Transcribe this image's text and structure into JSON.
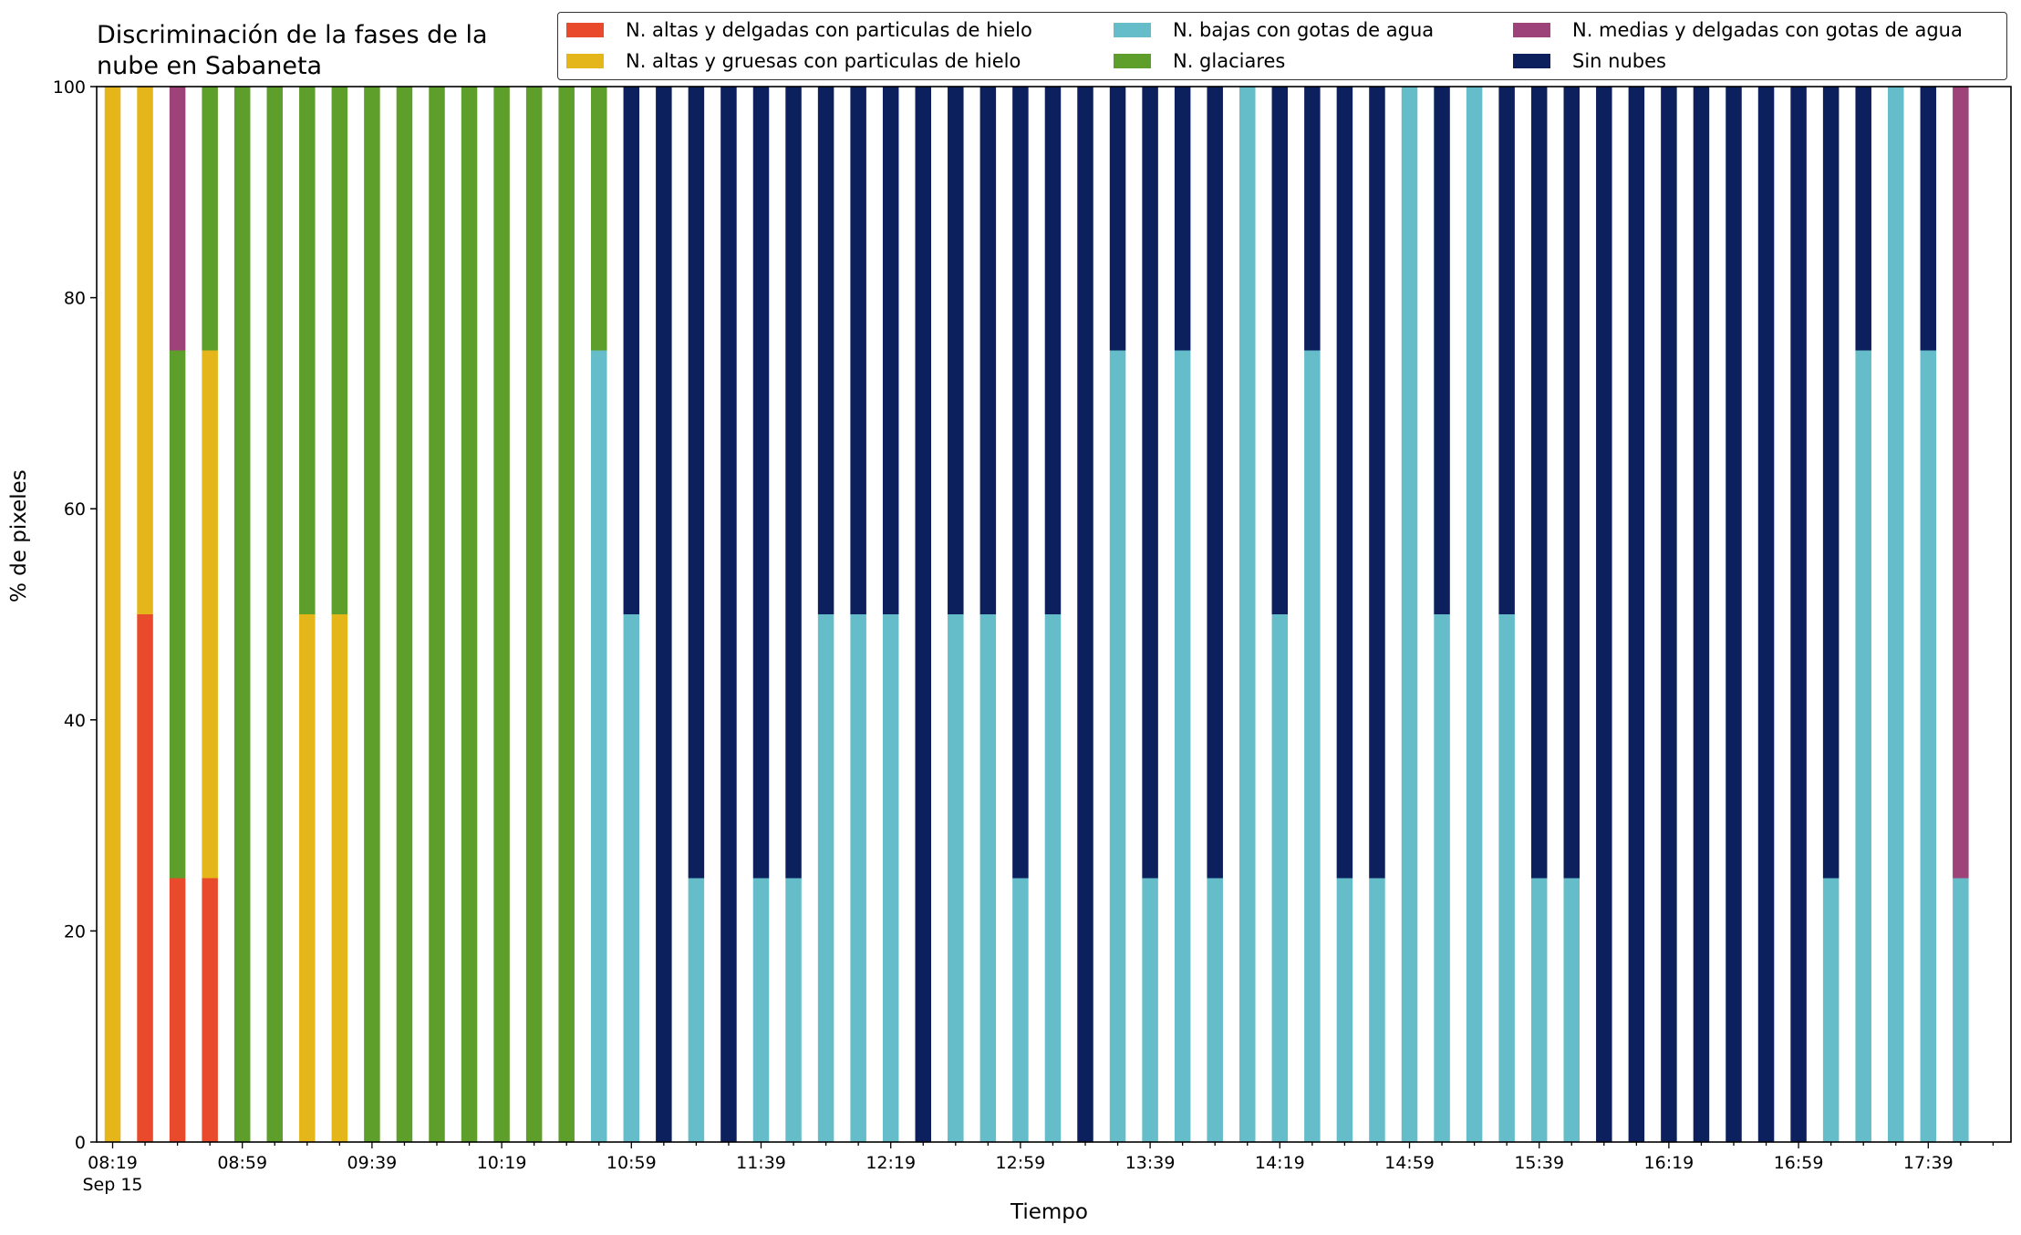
{
  "chart_data": {
    "type": "bar",
    "stacked": true,
    "title_lines": [
      "Discriminación de la fases de la",
      "nube en Sabaneta"
    ],
    "xlabel": "Tiempo",
    "ylabel": "% de pixeles",
    "ylim": [
      0,
      100
    ],
    "yticks": [
      0,
      20,
      40,
      60,
      80,
      100
    ],
    "x_tick_labels": [
      "08:19",
      "08:59",
      "09:39",
      "10:19",
      "10:59",
      "11:39",
      "12:19",
      "12:59",
      "13:39",
      "14:19",
      "14:59",
      "15:39",
      "16:19",
      "16:59",
      "17:39"
    ],
    "x_tick_sublabel": "Sep 15",
    "x_start": "08:19",
    "x_step_minutes": 10,
    "n_bars": 58,
    "grid": false,
    "legend_placement": "top-right",
    "series": [
      {
        "name": "N. altas y delgadas con particulas de hielo",
        "color": "#e84a2b",
        "values": [
          0,
          50,
          25,
          25,
          0,
          0,
          0,
          0,
          0,
          0,
          0,
          0,
          0,
          0,
          0,
          0,
          0,
          0,
          0,
          0,
          0,
          0,
          0,
          0,
          0,
          0,
          0,
          0,
          0,
          0,
          0,
          0,
          0,
          0,
          0,
          0,
          0,
          0,
          0,
          0,
          0,
          0,
          0,
          0,
          0,
          0,
          0,
          0,
          0,
          0,
          0,
          0,
          0,
          0,
          0,
          0,
          0,
          0
        ]
      },
      {
        "name": "N. altas y gruesas con particulas de hielo",
        "color": "#e4b61a",
        "values": [
          100,
          50,
          0,
          50,
          0,
          0,
          50,
          50,
          0,
          0,
          0,
          0,
          0,
          0,
          0,
          0,
          0,
          0,
          0,
          0,
          0,
          0,
          0,
          0,
          0,
          0,
          0,
          0,
          0,
          0,
          0,
          0,
          0,
          0,
          0,
          0,
          0,
          0,
          0,
          0,
          0,
          0,
          0,
          0,
          0,
          0,
          0,
          0,
          0,
          0,
          0,
          0,
          0,
          0,
          0,
          0,
          0,
          0
        ]
      },
      {
        "name": "N. bajas con gotas de agua",
        "color": "#64bdc8",
        "values": [
          0,
          0,
          0,
          0,
          0,
          0,
          0,
          0,
          0,
          0,
          0,
          0,
          0,
          0,
          0,
          75,
          50,
          0,
          25,
          0,
          25,
          25,
          50,
          50,
          50,
          0,
          50,
          50,
          25,
          50,
          0,
          75,
          25,
          75,
          25,
          100,
          50,
          75,
          25,
          25,
          100,
          50,
          100,
          50,
          25,
          25,
          0,
          0,
          0,
          0,
          0,
          0,
          0,
          25,
          75,
          100,
          75,
          25
        ]
      },
      {
        "name": "N. glaciares",
        "color": "#5e9e2a",
        "values": [
          0,
          0,
          50,
          25,
          100,
          100,
          50,
          50,
          100,
          100,
          100,
          100,
          100,
          100,
          100,
          25,
          0,
          0,
          0,
          0,
          0,
          0,
          0,
          0,
          0,
          0,
          0,
          0,
          0,
          0,
          0,
          0,
          0,
          0,
          0,
          0,
          0,
          0,
          0,
          0,
          0,
          0,
          0,
          0,
          0,
          0,
          0,
          0,
          0,
          0,
          0,
          0,
          0,
          0,
          0,
          0,
          0,
          0
        ]
      },
      {
        "name": "N. medias y delgadas con gotas de agua",
        "color": "#9e4379",
        "values": [
          0,
          0,
          25,
          0,
          0,
          0,
          0,
          0,
          0,
          0,
          0,
          0,
          0,
          0,
          0,
          0,
          0,
          0,
          0,
          0,
          0,
          0,
          0,
          0,
          0,
          0,
          0,
          0,
          0,
          0,
          0,
          0,
          0,
          0,
          0,
          0,
          0,
          0,
          0,
          0,
          0,
          0,
          0,
          0,
          0,
          0,
          0,
          0,
          0,
          0,
          0,
          0,
          0,
          0,
          0,
          0,
          0,
          75
        ]
      },
      {
        "name": "Sin nubes",
        "color": "#0c205e",
        "values": [
          0,
          0,
          0,
          0,
          0,
          0,
          0,
          0,
          0,
          0,
          0,
          0,
          0,
          0,
          0,
          0,
          50,
          100,
          75,
          100,
          75,
          75,
          50,
          50,
          50,
          100,
          50,
          50,
          75,
          50,
          100,
          25,
          75,
          25,
          75,
          0,
          50,
          25,
          75,
          75,
          0,
          50,
          0,
          50,
          75,
          75,
          100,
          100,
          100,
          100,
          100,
          100,
          100,
          75,
          25,
          0,
          25,
          0
        ]
      }
    ]
  }
}
